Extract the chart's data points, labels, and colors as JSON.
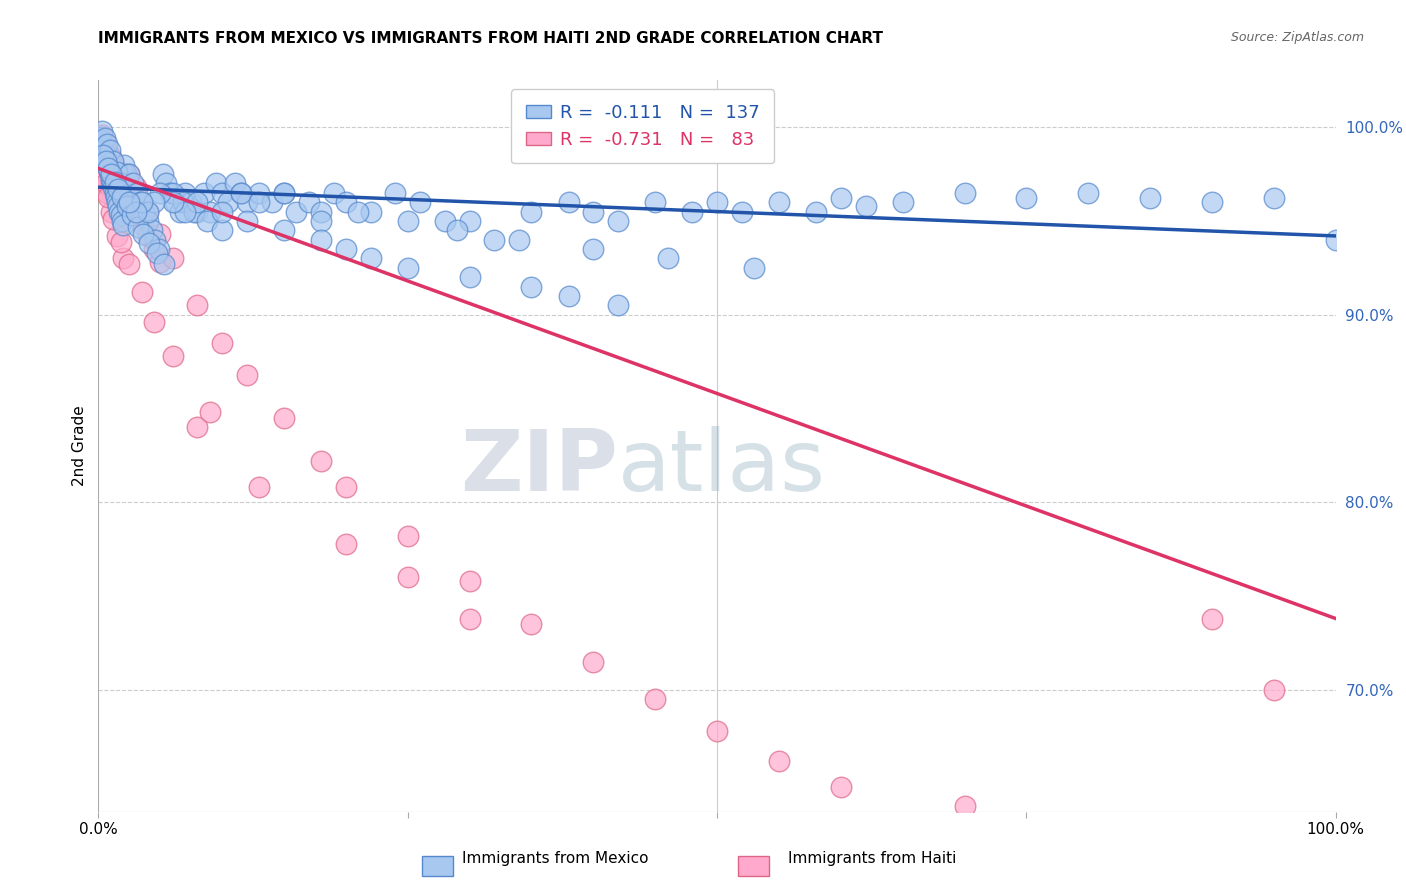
{
  "title": "IMMIGRANTS FROM MEXICO VS IMMIGRANTS FROM HAITI 2ND GRADE CORRELATION CHART",
  "source": "Source: ZipAtlas.com",
  "ylabel": "2nd Grade",
  "right_yticks": [
    "70.0%",
    "80.0%",
    "90.0%",
    "100.0%"
  ],
  "right_ytick_vals": [
    0.7,
    0.8,
    0.9,
    1.0
  ],
  "legend_blue_r": "-0.111",
  "legend_blue_n": "137",
  "legend_pink_r": "-0.731",
  "legend_pink_n": "83",
  "blue_color": "#a8c8f0",
  "blue_edge_color": "#5588cc",
  "pink_color": "#ffaacc",
  "pink_edge_color": "#dd6688",
  "blue_line_color": "#2255aa",
  "pink_line_color": "#dd3366",
  "watermark_zip": "ZIP",
  "watermark_atlas": "atlas",
  "xlim": [
    0.0,
    1.0
  ],
  "ylim": [
    0.635,
    1.025
  ],
  "blue_scatter_x": [
    0.001,
    0.002,
    0.003,
    0.004,
    0.005,
    0.006,
    0.007,
    0.008,
    0.009,
    0.01,
    0.011,
    0.012,
    0.013,
    0.014,
    0.015,
    0.016,
    0.017,
    0.018,
    0.019,
    0.02,
    0.021,
    0.022,
    0.003,
    0.005,
    0.007,
    0.009,
    0.012,
    0.015,
    0.018,
    0.021,
    0.025,
    0.028,
    0.031,
    0.034,
    0.037,
    0.04,
    0.043,
    0.046,
    0.049,
    0.052,
    0.055,
    0.058,
    0.062,
    0.066,
    0.07,
    0.075,
    0.08,
    0.085,
    0.09,
    0.095,
    0.1,
    0.105,
    0.11,
    0.115,
    0.12,
    0.13,
    0.14,
    0.15,
    0.16,
    0.17,
    0.18,
    0.19,
    0.2,
    0.22,
    0.24,
    0.26,
    0.28,
    0.3,
    0.32,
    0.35,
    0.38,
    0.4,
    0.42,
    0.45,
    0.48,
    0.5,
    0.52,
    0.55,
    0.58,
    0.6,
    0.62,
    0.65,
    0.7,
    0.75,
    0.8,
    0.85,
    0.9,
    0.95,
    1.0,
    0.004,
    0.006,
    0.008,
    0.01,
    0.013,
    0.016,
    0.019,
    0.023,
    0.027,
    0.032,
    0.036,
    0.041,
    0.047,
    0.053,
    0.06,
    0.068,
    0.077,
    0.088,
    0.1,
    0.115,
    0.13,
    0.15,
    0.18,
    0.21,
    0.25,
    0.29,
    0.34,
    0.4,
    0.46,
    0.53,
    0.38,
    0.42,
    0.3,
    0.35,
    0.25,
    0.2,
    0.22,
    0.18,
    0.15,
    0.12,
    0.1,
    0.08,
    0.07,
    0.06,
    0.05,
    0.045,
    0.04,
    0.035,
    0.03,
    0.025
  ],
  "blue_scatter_y": [
    0.995,
    0.993,
    0.99,
    0.988,
    0.985,
    0.983,
    0.98,
    0.978,
    0.975,
    0.972,
    0.97,
    0.968,
    0.965,
    0.963,
    0.96,
    0.958,
    0.955,
    0.953,
    0.95,
    0.948,
    0.98,
    0.975,
    0.998,
    0.994,
    0.991,
    0.988,
    0.982,
    0.976,
    0.97,
    0.964,
    0.975,
    0.97,
    0.965,
    0.96,
    0.955,
    0.95,
    0.945,
    0.94,
    0.935,
    0.975,
    0.97,
    0.965,
    0.96,
    0.955,
    0.965,
    0.96,
    0.955,
    0.965,
    0.955,
    0.97,
    0.965,
    0.96,
    0.97,
    0.965,
    0.96,
    0.965,
    0.96,
    0.965,
    0.955,
    0.96,
    0.955,
    0.965,
    0.96,
    0.955,
    0.965,
    0.96,
    0.95,
    0.95,
    0.94,
    0.955,
    0.96,
    0.955,
    0.95,
    0.96,
    0.955,
    0.96,
    0.955,
    0.96,
    0.955,
    0.962,
    0.958,
    0.96,
    0.965,
    0.962,
    0.965,
    0.962,
    0.96,
    0.962,
    0.94,
    0.985,
    0.982,
    0.978,
    0.975,
    0.971,
    0.967,
    0.963,
    0.958,
    0.953,
    0.947,
    0.943,
    0.938,
    0.933,
    0.927,
    0.965,
    0.96,
    0.955,
    0.95,
    0.945,
    0.965,
    0.96,
    0.965,
    0.95,
    0.955,
    0.95,
    0.945,
    0.94,
    0.935,
    0.93,
    0.925,
    0.91,
    0.905,
    0.92,
    0.915,
    0.925,
    0.935,
    0.93,
    0.94,
    0.945,
    0.95,
    0.955,
    0.96,
    0.955,
    0.96,
    0.965,
    0.96,
    0.955,
    0.96,
    0.955,
    0.96
  ],
  "pink_scatter_x": [
    0.001,
    0.002,
    0.003,
    0.004,
    0.005,
    0.006,
    0.007,
    0.008,
    0.009,
    0.01,
    0.011,
    0.012,
    0.013,
    0.014,
    0.015,
    0.016,
    0.017,
    0.018,
    0.019,
    0.02,
    0.022,
    0.025,
    0.028,
    0.032,
    0.036,
    0.04,
    0.045,
    0.05,
    0.003,
    0.005,
    0.007,
    0.01,
    0.013,
    0.016,
    0.02,
    0.025,
    0.03,
    0.025,
    0.03,
    0.04,
    0.05,
    0.06,
    0.08,
    0.1,
    0.12,
    0.15,
    0.18,
    0.2,
    0.25,
    0.3,
    0.35,
    0.4,
    0.45,
    0.5,
    0.55,
    0.6,
    0.7,
    0.08,
    0.13,
    0.2,
    0.25,
    0.3,
    0.02,
    0.015,
    0.01,
    0.007,
    0.005,
    0.003,
    0.002,
    0.004,
    0.006,
    0.008,
    0.012,
    0.018,
    0.025,
    0.035,
    0.045,
    0.06,
    0.09,
    0.9,
    0.95
  ],
  "pink_scatter_y": [
    0.992,
    0.989,
    0.986,
    0.983,
    0.98,
    0.977,
    0.974,
    0.971,
    0.968,
    0.965,
    0.982,
    0.978,
    0.975,
    0.972,
    0.968,
    0.965,
    0.962,
    0.958,
    0.955,
    0.952,
    0.97,
    0.965,
    0.96,
    0.955,
    0.948,
    0.942,
    0.935,
    0.928,
    0.996,
    0.992,
    0.988,
    0.984,
    0.978,
    0.973,
    0.967,
    0.96,
    0.953,
    0.975,
    0.968,
    0.955,
    0.943,
    0.93,
    0.905,
    0.885,
    0.868,
    0.845,
    0.822,
    0.808,
    0.782,
    0.758,
    0.735,
    0.715,
    0.695,
    0.678,
    0.662,
    0.648,
    0.638,
    0.84,
    0.808,
    0.778,
    0.76,
    0.738,
    0.93,
    0.942,
    0.955,
    0.965,
    0.972,
    0.981,
    0.987,
    0.977,
    0.97,
    0.963,
    0.951,
    0.939,
    0.927,
    0.912,
    0.896,
    0.878,
    0.848,
    0.738,
    0.7
  ],
  "blue_trendline_x": [
    0.0,
    1.0
  ],
  "blue_trendline_y": [
    0.968,
    0.942
  ],
  "pink_trendline_x": [
    0.0,
    1.0
  ],
  "pink_trendline_y": [
    0.978,
    0.738
  ]
}
